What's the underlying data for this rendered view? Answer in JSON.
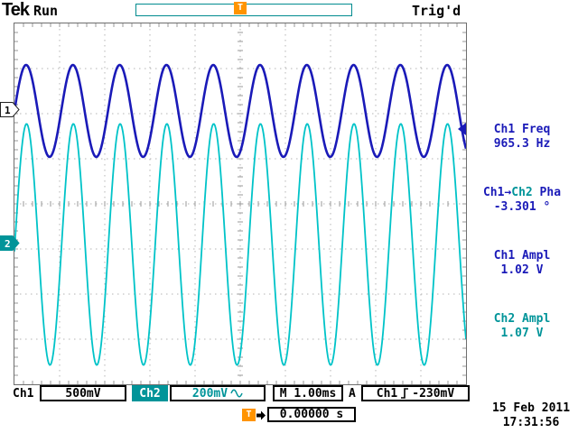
{
  "header": {
    "brand": "Tek",
    "mode": "Run",
    "trigger_status": "Trig'd"
  },
  "trigger": {
    "marker": "T",
    "delay_readout": "0.00000 s"
  },
  "channel_markers": [
    {
      "label": "1"
    },
    {
      "label": "2"
    }
  ],
  "measurements": [
    {
      "label": "Ch1 Freq",
      "value": "965.3 Hz"
    },
    {
      "label_parts": {
        "a": "Ch1→",
        "b": "Ch2",
        "c": " Pha"
      },
      "value": "-3.301 °"
    },
    {
      "label": "Ch1 Ampl",
      "value": "1.02 V"
    },
    {
      "label": "Ch2 Ampl",
      "value": "1.07 V"
    }
  ],
  "status_bar": {
    "ch1_label": "Ch1",
    "ch1_scale": "500mV",
    "ch2_label": "Ch2",
    "ch2_scale": "200mV",
    "ch2_coupling_icon": "sine-wave",
    "timebase": "M 1.00ms",
    "trigger_mode": "A",
    "trigger_source": "Ch1",
    "trigger_slope_icon": "rising-edge",
    "trigger_level": "-230mV"
  },
  "footer": {
    "date": "15 Feb 2011",
    "time": "17:31:56"
  },
  "colors": {
    "ch1": "#1a1ab8",
    "ch2": "#00c3c8",
    "teal": "#009499",
    "orange": "#ff9400"
  },
  "chart_data": {
    "type": "line",
    "title": "Tektronix oscilloscope display, two sine traces",
    "x_divisions": 10,
    "y_divisions": 8,
    "timebase_s_per_div": 0.001,
    "trigger_time_s": 0.0,
    "series": [
      {
        "name": "Ch1",
        "color": "#1a1ab8",
        "volts_per_div": 0.5,
        "amplitude_vpp_v": 1.02,
        "frequency_hz": 965.3,
        "center_y_div": 1.94,
        "phase_deg": 0,
        "linewidth": 2.6
      },
      {
        "name": "Ch2",
        "color": "#00c3c8",
        "volts_per_div": 0.2,
        "amplitude_vpp_v": 1.07,
        "frequency_hz": 965.3,
        "center_y_div": 4.9,
        "phase_deg": -3.301,
        "linewidth": 1.8
      }
    ]
  }
}
